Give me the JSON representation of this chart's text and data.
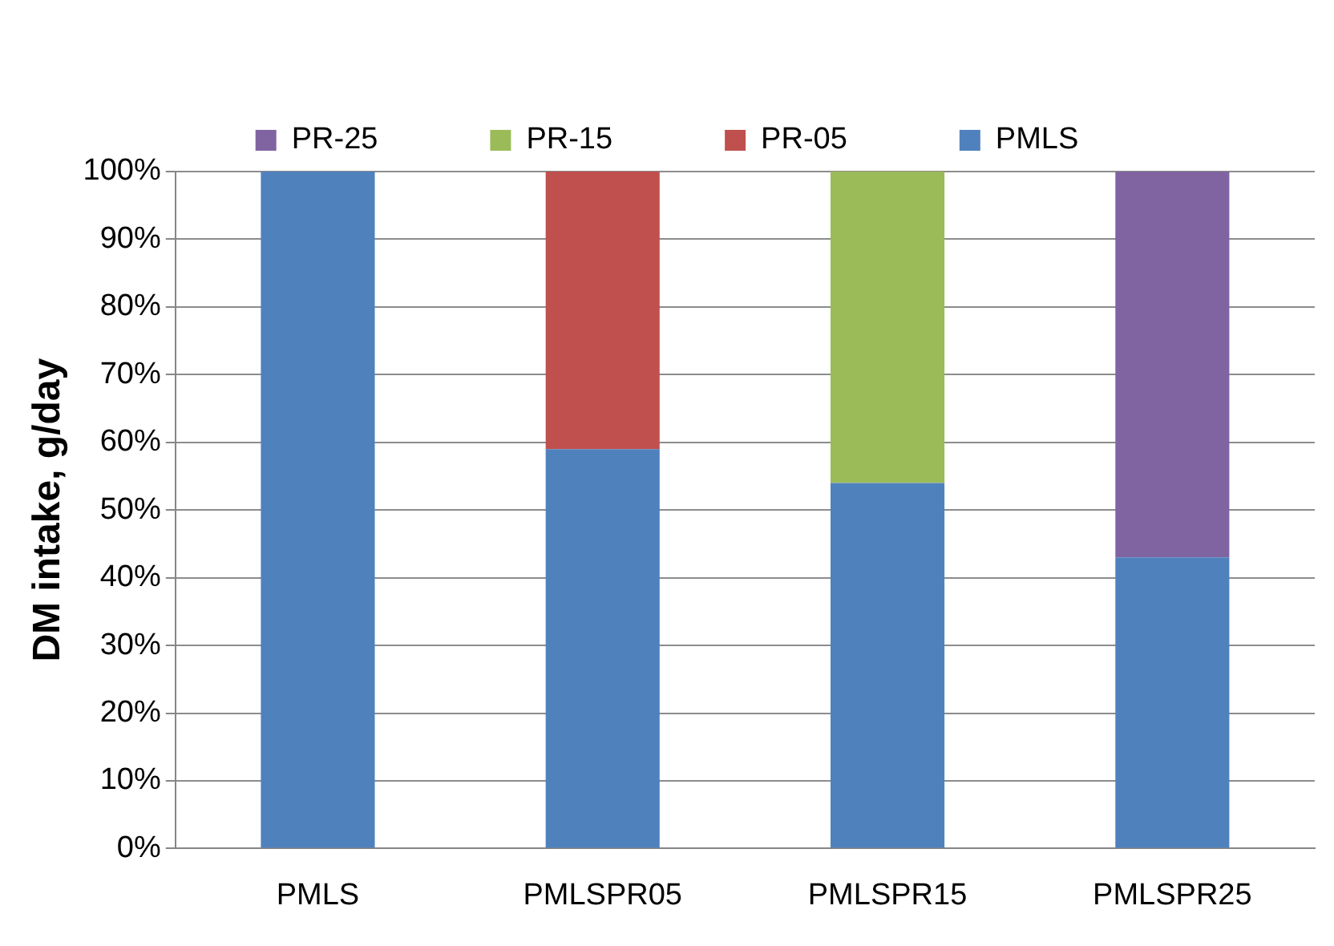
{
  "chart_data": {
    "type": "bar",
    "stacked": true,
    "ylabel": "DM intake, g/day",
    "categories": [
      "PMLS",
      "PMLSPR05",
      "PMLSPR15",
      "PMLSPR25"
    ],
    "series": [
      {
        "name": "PMLS",
        "color": "#4f81bd",
        "values": [
          100,
          59,
          54,
          43
        ]
      },
      {
        "name": "PR-05",
        "color": "#c0504d",
        "values": [
          null,
          41,
          null,
          null
        ]
      },
      {
        "name": "PR-15",
        "color": "#9bbb59",
        "values": [
          null,
          null,
          46,
          null
        ]
      },
      {
        "name": "PR-25",
        "color": "#8064a2",
        "values": [
          null,
          null,
          null,
          57
        ]
      }
    ],
    "ylim": [
      0,
      100
    ],
    "yticks": [
      {
        "value": 0,
        "label": "0%"
      },
      {
        "value": 10,
        "label": "10%"
      },
      {
        "value": 20,
        "label": "20%"
      },
      {
        "value": 30,
        "label": "30%"
      },
      {
        "value": 40,
        "label": "40%"
      },
      {
        "value": 50,
        "label": "50%"
      },
      {
        "value": 60,
        "label": "60%"
      },
      {
        "value": 70,
        "label": "70%"
      },
      {
        "value": 80,
        "label": "80%"
      },
      {
        "value": 90,
        "label": "90%"
      },
      {
        "value": 100,
        "label": "100%"
      }
    ],
    "grid": "y",
    "legend": "top"
  }
}
